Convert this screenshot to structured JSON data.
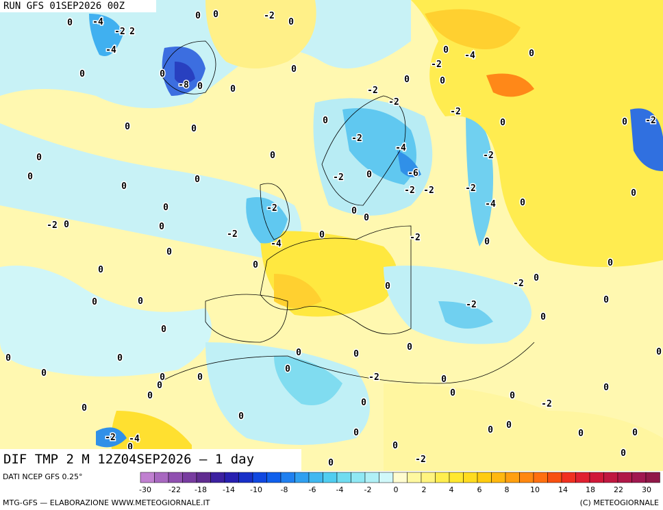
{
  "header": {
    "run": "RUN GFS 01SEP2026 00Z",
    "field": "DIF TMP 2 M 12Z04SEP2026 — 1 day"
  },
  "map": {
    "contour_labels": [
      "0",
      "-4",
      "-2",
      "2",
      "-4",
      "0",
      "0",
      "-8",
      "0",
      "-2",
      "0",
      "0",
      "0",
      "0",
      "0",
      "0",
      "0",
      "-2",
      "-2",
      "0",
      "-2",
      "0",
      "-4",
      "0",
      "0",
      "-2",
      "0",
      "0",
      "-2",
      "0",
      "-2",
      "-4",
      "-6",
      "-2",
      "-2",
      "-2",
      "-2",
      "-2",
      "-4",
      "0",
      "0",
      "0",
      "0",
      "0",
      "0",
      "0",
      "0",
      "0",
      "-2",
      "0",
      "0",
      "-2",
      "-2",
      "-4",
      "0",
      "0",
      "0",
      "-2",
      "0",
      "0",
      "0",
      "0",
      "0",
      "-2",
      "0",
      "0",
      "0",
      "0",
      "-2",
      "0",
      "0",
      "0",
      "0",
      "0",
      "0",
      "0",
      "0",
      "0",
      "0",
      "0",
      "0",
      "0",
      "-2",
      "0",
      "0",
      "0",
      "0",
      "0",
      "0",
      "0",
      "0",
      "-2",
      "0",
      "-2",
      "-4",
      "0",
      "0",
      "0",
      "0",
      "0",
      "0",
      "0",
      "-2",
      "0",
      "0",
      "-2"
    ]
  },
  "legend": {
    "source": "DATI NCEP GFS 0.25°",
    "colors": [
      "#c080d0",
      "#a868c0",
      "#9050b0",
      "#783ca0",
      "#602c90",
      "#3c20a0",
      "#2820b0",
      "#1830c8",
      "#1048e0",
      "#1060ec",
      "#2080f0",
      "#30a0f0",
      "#40b8f0",
      "#50cdf0",
      "#70dcf0",
      "#90e8f4",
      "#b0f0f6",
      "#d0f8fa",
      "#fffcd0",
      "#fff8a0",
      "#fff480",
      "#ffee50",
      "#ffe830",
      "#ffdc20",
      "#ffcc10",
      "#ffb810",
      "#ffa010",
      "#ff8810",
      "#ff7010",
      "#f85010",
      "#f03020",
      "#e02030",
      "#d01838",
      "#c01840",
      "#b01848",
      "#a01850",
      "#901848"
    ],
    "ticks": [
      "-30",
      "-22",
      "-18",
      "-14",
      "-10",
      "-8",
      "-6",
      "-4",
      "-2",
      "0",
      "2",
      "4",
      "6",
      "8",
      "10",
      "14",
      "18",
      "22",
      "30"
    ]
  },
  "footer": {
    "left": "MTG-GFS — ELABORAZIONE WWW.METEOGIORNALE.IT",
    "right": "(C) METEOGIORNALE"
  }
}
